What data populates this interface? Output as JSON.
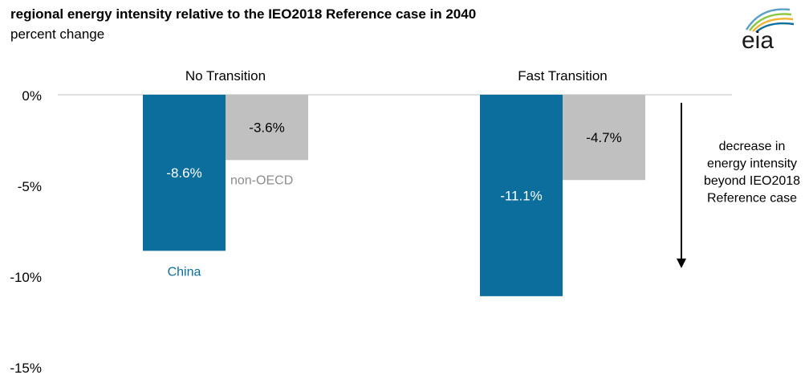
{
  "header": {
    "title": "regional energy intensity relative to the IEO2018 Reference case in 2040",
    "subtitle": "percent change",
    "logo_text": "eia"
  },
  "chart_data": {
    "type": "bar",
    "categories": [
      "No Transition",
      "Fast Transition"
    ],
    "series": [
      {
        "name": "China",
        "values": [
          -8.6,
          -11.1
        ],
        "labels": [
          "-8.6%",
          "-11.1%"
        ],
        "color": "#0b6e9c"
      },
      {
        "name": "non-OECD",
        "values": [
          -3.6,
          -4.7
        ],
        "labels": [
          "-3.6%",
          "-4.7%"
        ],
        "color": "#c0c0c0"
      }
    ],
    "ylim": [
      -15,
      0
    ],
    "yticks": [
      0,
      -5,
      -10,
      -15
    ],
    "ytick_labels": [
      "0%",
      "-5%",
      "-10%",
      "-15%"
    ],
    "annotation": {
      "lines": [
        "decrease in",
        "energy intensity",
        "beyond IEO2018",
        "Reference case"
      ]
    },
    "colors": {
      "china": "#0b6e9c",
      "non_oecd": "#c0c0c0",
      "non_oecd_label": "#8c8c8c",
      "axis": "#bfbfbf"
    },
    "grid": false,
    "legend": "inline labels"
  }
}
